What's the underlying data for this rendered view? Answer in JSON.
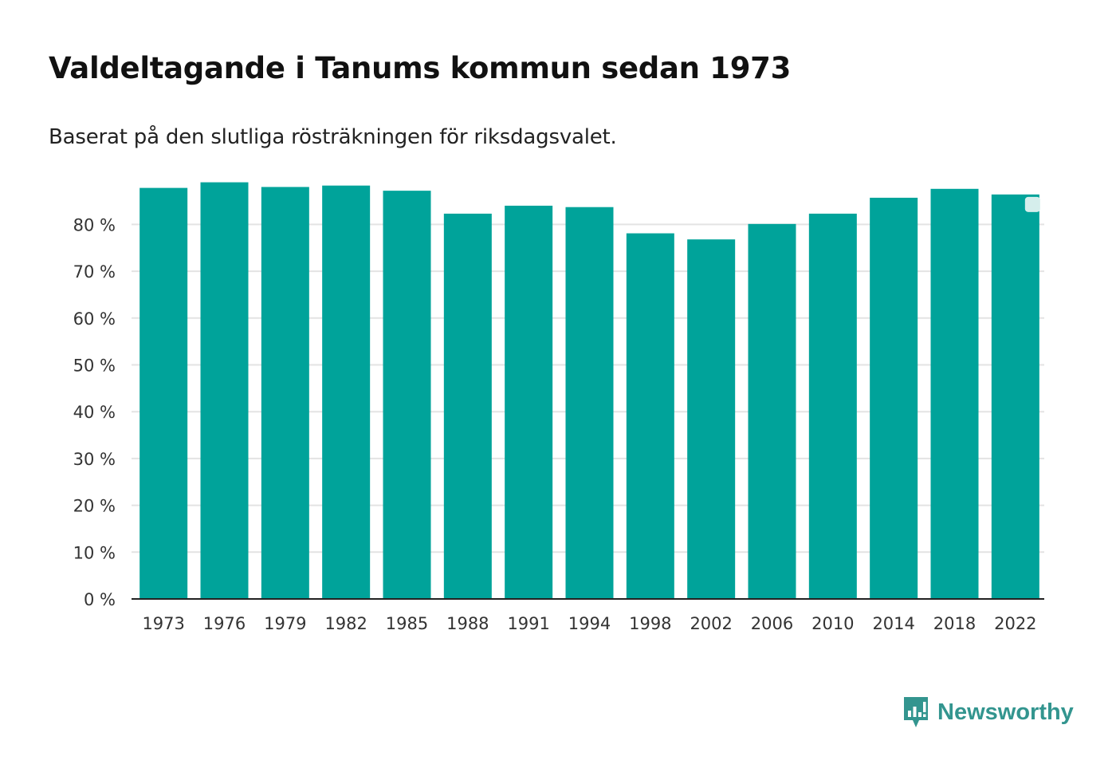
{
  "title": "Valdeltagande i Tanums kommun sedan 1973",
  "subtitle": "Baserat på den slutliga rösträkningen för riksdagsvalet.",
  "brand": {
    "name": "Newsworthy",
    "icon": "newsworthy-logo-icon",
    "color": "#33958f"
  },
  "colors": {
    "bar": "#00a39a",
    "grid": "#e3e3e3",
    "axis": "#222222",
    "text": "#333333",
    "marker": "#d5eeec"
  },
  "chart_data": {
    "type": "bar",
    "title": "Valdeltagande i Tanums kommun sedan 1973",
    "xlabel": "",
    "ylabel": "",
    "categories": [
      "1973",
      "1976",
      "1979",
      "1982",
      "1985",
      "1988",
      "1991",
      "1994",
      "1998",
      "2002",
      "2006",
      "2010",
      "2014",
      "2018",
      "2022"
    ],
    "values": [
      87.8,
      89.0,
      88.0,
      88.3,
      87.2,
      82.3,
      84.0,
      83.7,
      78.1,
      76.8,
      80.1,
      82.3,
      85.7,
      87.6,
      86.4
    ],
    "unit": "%",
    "yticks": [
      0,
      10,
      20,
      30,
      40,
      50,
      60,
      70,
      80
    ],
    "ytick_labels": [
      "0 %",
      "10 %",
      "20 %",
      "30 %",
      "40 %",
      "50 %",
      "60 %",
      "70 %",
      "80 %"
    ],
    "ylim": [
      0,
      90
    ],
    "grid": true,
    "legend": "none"
  }
}
